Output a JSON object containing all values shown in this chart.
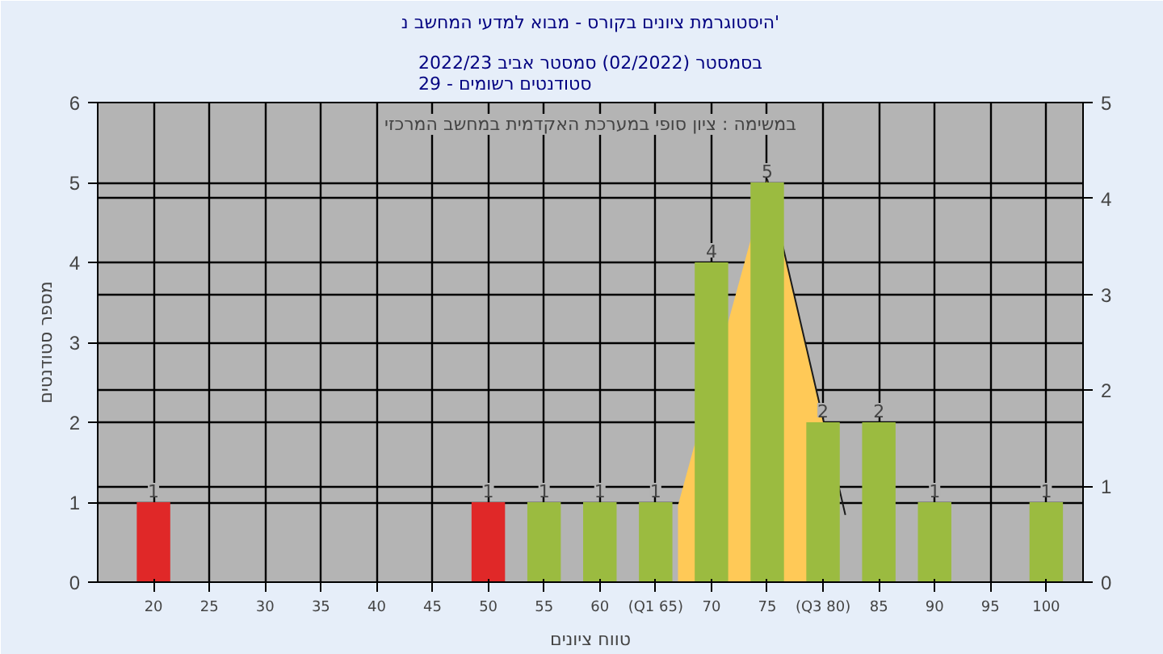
{
  "chart_data": {
    "type": "bar",
    "title": "היסטוגרמת ציונים בקורס - מבוא למדעי המחשב נ'",
    "subtitle": "בסמסטר (02/2022) סמסטר אביב 2022/23\nסטודנטים רשומים - 29",
    "annotations": [
      "במשימה : ציון סופי במערכת האקדמית במחשב המרכזי"
    ],
    "xlabel": "טווח ציונים",
    "ylabel": "מספר סטודנטים",
    "x": [
      20,
      25,
      30,
      35,
      40,
      45,
      50,
      55,
      60,
      65,
      70,
      75,
      80,
      85,
      90,
      95,
      100
    ],
    "series": [
      {
        "type": "area",
        "axis": "y2",
        "color": "#ffc957",
        "x": [
          67,
          75,
          80
        ],
        "values": [
          0.8,
          4.2,
          1.7
        ]
      },
      {
        "type": "line",
        "axis": "y2",
        "color": "#1a1a1a",
        "x": [
          75,
          82
        ],
        "values": [
          4.2,
          0.7
        ]
      },
      {
        "type": "bar",
        "colors": [
          "#e02828",
          "#9bbb40",
          "#9bbb40",
          "#9bbb40",
          "#9bbb40",
          "#9bbb40",
          "#e02828",
          "#9bbb40",
          "#9bbb40",
          "#9bbb40",
          "#9bbb40",
          "#9bbb40",
          "#9bbb40",
          "#9bbb40",
          "#9bbb40",
          "#9bbb40",
          "#9bbb40"
        ],
        "values": [
          1,
          0,
          0,
          0,
          0,
          0,
          1,
          1,
          1,
          1,
          4,
          5,
          2,
          2,
          1,
          0,
          1
        ],
        "value_labels": [
          "1",
          null,
          null,
          null,
          null,
          null,
          "1",
          "1",
          "1",
          "1",
          "4",
          "5",
          "2",
          "2",
          "1",
          null,
          "1"
        ]
      }
    ],
    "xlim": [
      15,
      103.3
    ],
    "xticks": [
      20,
      25,
      30,
      35,
      40,
      45,
      50,
      55,
      60,
      {
        "value": 65,
        "label": "(Q1 65)"
      },
      70,
      75,
      {
        "value": 80,
        "label": "(Q3 80)"
      },
      85,
      90,
      95,
      100
    ],
    "ylim": [
      0,
      6
    ],
    "yticks": [
      0,
      1,
      2,
      3,
      4,
      5,
      6
    ],
    "y2lim": [
      0,
      5
    ],
    "y2ticks": [
      0,
      1,
      2,
      3,
      4,
      5
    ],
    "grid": true
  }
}
